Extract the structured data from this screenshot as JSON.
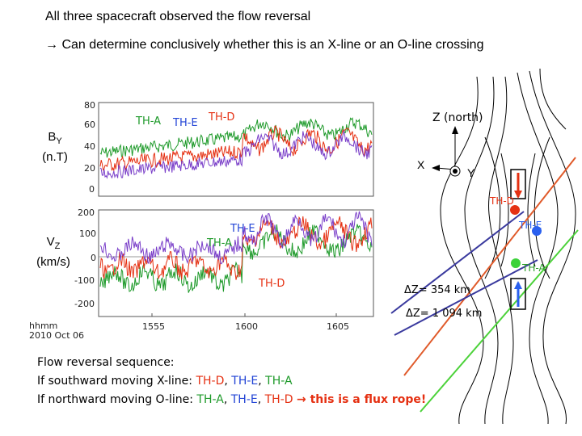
{
  "title": "All three spacecraft observed the flow reversal",
  "subtitle": "→ Can determine conclusively whether this is an X-line or an O-line crossing",
  "plot": {
    "panel1": {
      "label_main": "B",
      "label_sub": "Y",
      "label_unit": "(n.T)",
      "yticks": [
        "80",
        "60",
        "40",
        "20",
        "0"
      ],
      "series_labels": [
        "TH-A",
        "TH-E",
        "TH-D"
      ]
    },
    "panel2": {
      "label_main": "V",
      "label_sub": "Z",
      "label_unit": "(km/s)",
      "yticks": [
        "200",
        "100",
        "0",
        "-100",
        "-200"
      ],
      "series_labels": [
        "TH-E",
        "TH-A",
        "TH-D"
      ]
    },
    "time_axis": {
      "header1": "hhmm",
      "header2": "2010 Oct 06",
      "ticks": [
        "1555",
        "1600",
        "1605"
      ]
    }
  },
  "diagram": {
    "z_axis": "Z (north)",
    "x_axis": "X",
    "y_axis": "Y",
    "probes": [
      "TH-D",
      "TH-E",
      "TH-A"
    ],
    "dz1": "ΔZ= 354 km",
    "dz2": "ΔZ= 1 094 km"
  },
  "sequence": {
    "heading": "Flow reversal sequence:",
    "line1_prefix": "If southward moving X-line: ",
    "line1_items": [
      "TH-D",
      "TH-E",
      "TH-A"
    ],
    "line2_prefix": "If northward moving O-line: ",
    "line2_items": [
      "TH-A",
      "TH-E",
      "TH-D"
    ],
    "line2_suffix": "→ this is a flux rope!"
  },
  "colors": {
    "th_d": "#e53012",
    "th_e": "#2345d6",
    "th_a": "#1e9a2a"
  }
}
